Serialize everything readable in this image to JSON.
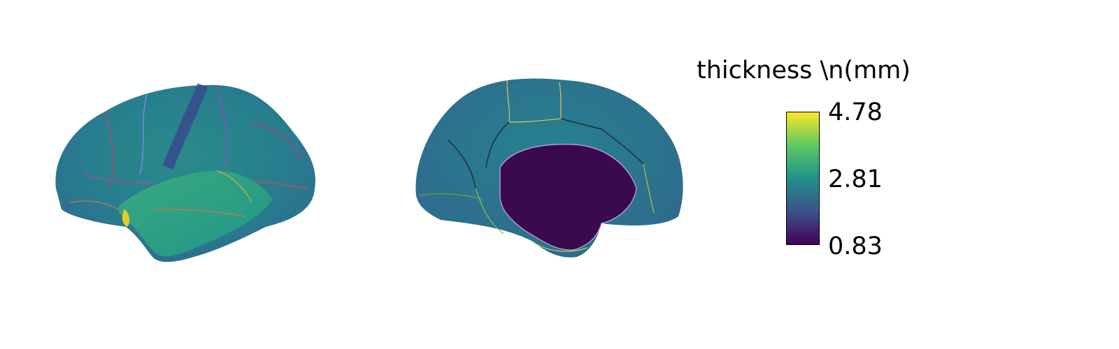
{
  "colorbar": {
    "title": "thickness \\n(mm)",
    "max_label": "4.78",
    "mid_label": "2.81",
    "min_label": "0.83",
    "max": 4.78,
    "mid": 2.81,
    "min": 0.83,
    "colormap": "viridis",
    "colors": [
      "#440154",
      "#3b528b",
      "#21918c",
      "#5ec962",
      "#fde725"
    ]
  },
  "views": [
    "lateral",
    "medial"
  ]
}
